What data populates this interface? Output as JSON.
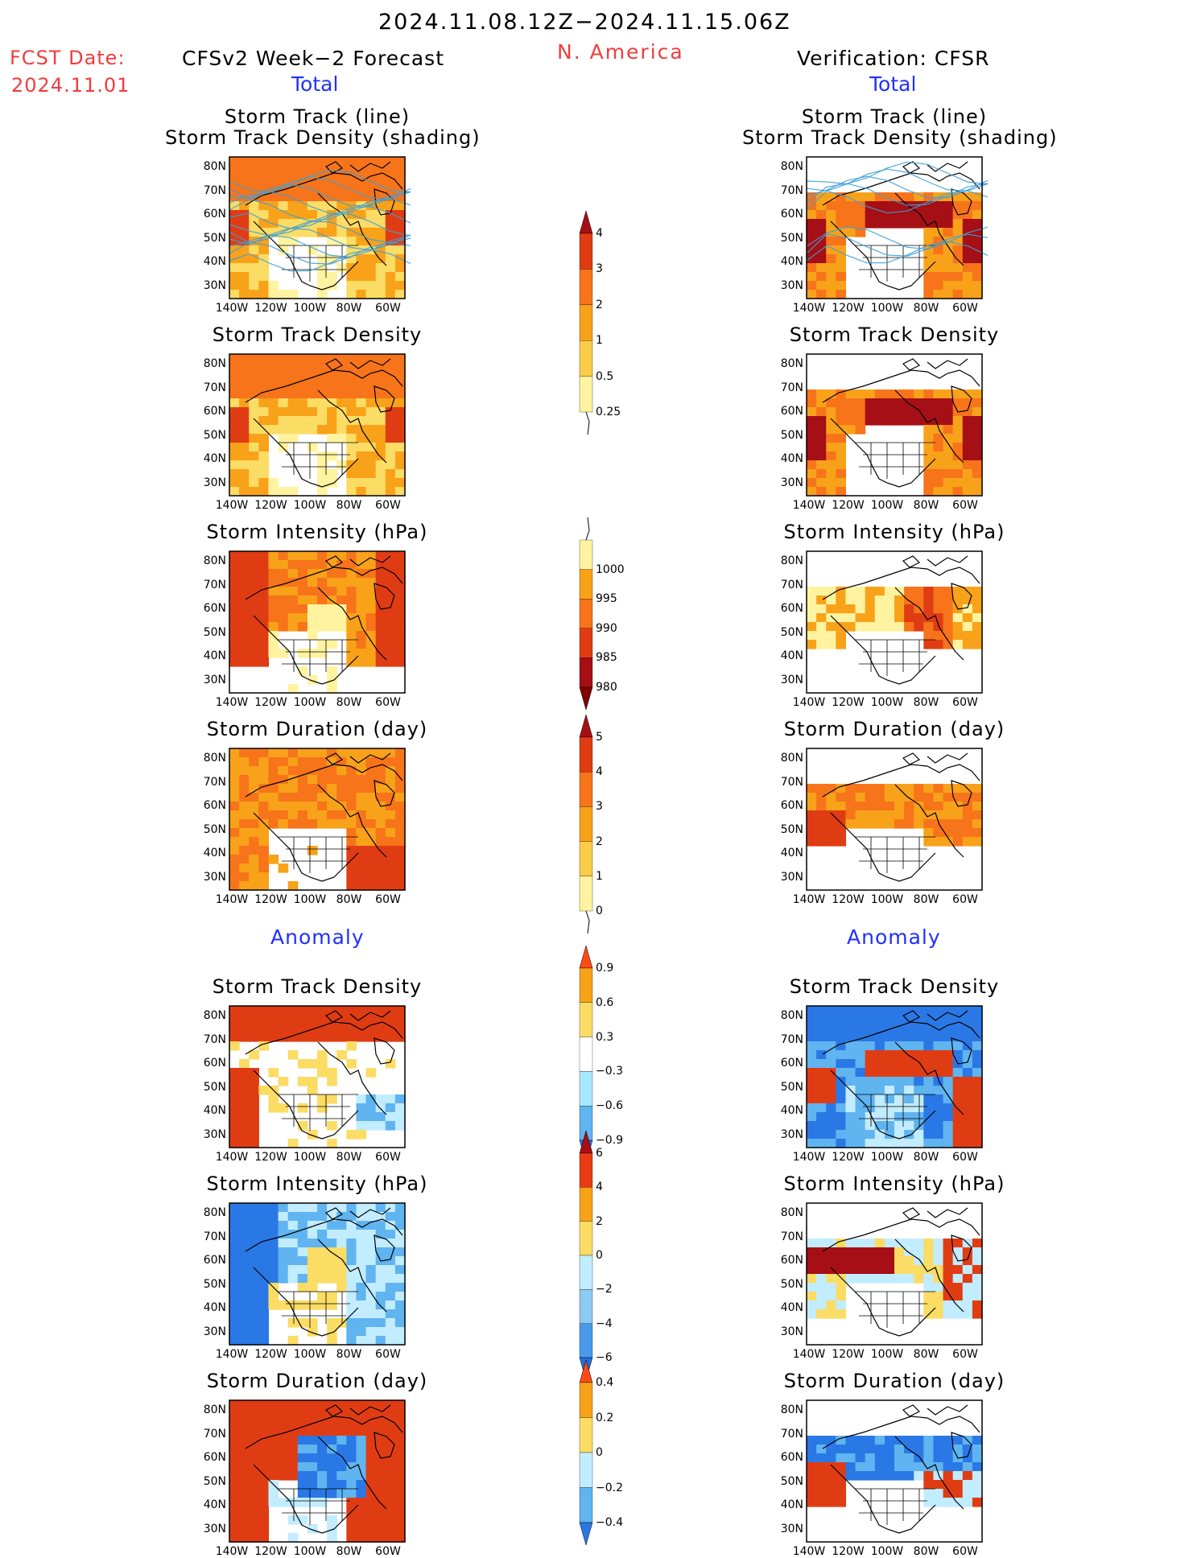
{
  "header": {
    "date_range": "2024.11.08.12Z−2024.11.15.06Z",
    "region": "N. America",
    "fcst_label": "FCST Date:",
    "fcst_date": "2024.11.01",
    "left_title": "CFSv2 Week−2 Forecast",
    "right_title": "Verification: CFSR",
    "total_label": "Total",
    "anomaly_label": "Anomaly"
  },
  "axes": {
    "lat_labels": [
      "80N",
      "70N",
      "60N",
      "50N",
      "40N",
      "30N"
    ],
    "lon_labels": [
      "140W",
      "120W",
      "100W",
      "80W",
      "60W"
    ]
  },
  "panels": {
    "left": [
      {
        "title1": "Storm Track (line)",
        "title2": "Storm Track Density (shading)",
        "scheme": "dens"
      },
      {
        "title1": "Storm Track Density",
        "scheme": "dens"
      },
      {
        "title1": "Storm Intensity (hPa)",
        "scheme": "inten"
      },
      {
        "title1": "Storm Duration (day)",
        "scheme": "dur"
      },
      {
        "title1": "Storm Track Density",
        "scheme": "anomD"
      },
      {
        "title1": "Storm Intensity (hPa)",
        "scheme": "anomI"
      },
      {
        "title1": "Storm Duration (day)",
        "scheme": "anomU"
      }
    ],
    "right": [
      {
        "title1": "Storm Track (line)",
        "title2": "Storm Track Density (shading)",
        "scheme": "densR"
      },
      {
        "title1": "Storm Track Density",
        "scheme": "densR"
      },
      {
        "title1": "Storm Intensity (hPa)",
        "scheme": "intenR"
      },
      {
        "title1": "Storm Duration (day)",
        "scheme": "durR"
      },
      {
        "title1": "Storm Track Density",
        "scheme": "anomDR"
      },
      {
        "title1": "Storm Intensity (hPa)",
        "scheme": "anomIR"
      },
      {
        "title1": "Storm Duration (day)",
        "scheme": "anomUR"
      }
    ]
  },
  "colorbars": [
    {
      "labels": [
        "4",
        "3",
        "2",
        "1",
        "0.5",
        "0.25"
      ],
      "colors": [
        "#a50f15",
        "#e03c14",
        "#f7741a",
        "#f8a21a",
        "#fbcb4a",
        "#fff3a0"
      ],
      "tail": "down"
    },
    {
      "labels": [
        "1000",
        "995",
        "990",
        "985",
        "980"
      ],
      "colors": [
        "#fff3a0",
        "#f8a21a",
        "#f7741a",
        "#e03c14",
        "#a50f15",
        "#800000"
      ],
      "tail": "up",
      "arrow": "down"
    },
    {
      "labels": [
        "5",
        "4",
        "3",
        "2",
        "1",
        "0"
      ],
      "colors": [
        "#a50f15",
        "#e03c14",
        "#f7741a",
        "#f8a21a",
        "#fbcb4a",
        "#fff3a0"
      ],
      "tail": "down"
    },
    {
      "labels": [
        "0.9",
        "0.6",
        "0.3",
        "−0.3",
        "−0.6",
        "−0.9"
      ],
      "colors": [
        "#ff4a16",
        "#f8a21a",
        "#fbdc64",
        "#ffffff",
        "#a8e8ff",
        "#60b4f0",
        "#2a78e6"
      ]
    },
    {
      "labels": [
        "6",
        "4",
        "2",
        "0",
        "−2",
        "−4",
        "−6"
      ],
      "colors": [
        "#a50f15",
        "#e83c14",
        "#f8a21a",
        "#fbdc64",
        "#c2ecff",
        "#8ccaf4",
        "#4a9aec",
        "#2070e0"
      ]
    },
    {
      "labels": [
        "0.4",
        "0.2",
        "0",
        "−0.2",
        "−0.4"
      ],
      "colors": [
        "#ff4a16",
        "#f8a21a",
        "#fbdc64",
        "#c2ecff",
        "#60b4f0",
        "#2a78e6"
      ]
    }
  ],
  "colors": {
    "deep_red": "#a50f15",
    "red": "#e03c14",
    "orange": "#f7741a",
    "light_orange": "#f8a21a",
    "yellow": "#fbdc64",
    "pale_yellow": "#fff3a0",
    "light_blue": "#c2ecff",
    "mid_blue": "#60b4f0",
    "dark_blue": "#2a78e6",
    "track_line": "#3ea0d8",
    "title_blue": "#2030ff",
    "title_red": "#f23c3c"
  }
}
